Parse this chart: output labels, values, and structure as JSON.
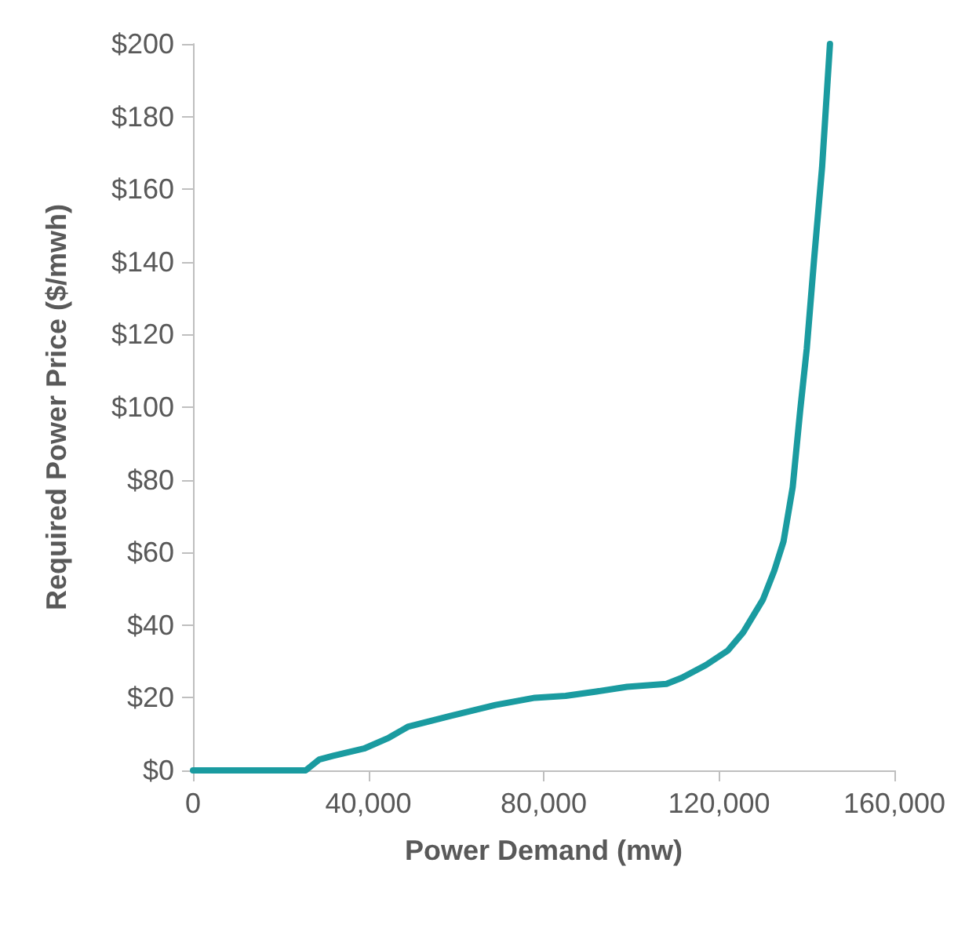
{
  "chart_data": {
    "type": "line",
    "xlabel": "Power Demand (mw)",
    "ylabel": "Required Power Price ($/mwh)",
    "x": [
      0,
      12000,
      23600,
      25700,
      28800,
      32000,
      39000,
      44700,
      49000,
      58700,
      69000,
      78000,
      85000,
      92000,
      99000,
      108000,
      111500,
      117000,
      122000,
      125500,
      130000,
      132600,
      134700,
      136800,
      138500,
      140000,
      141700,
      143500,
      145300
    ],
    "series": [
      {
        "color": "#1a9ba0",
        "values": [
          0,
          0,
          0,
          0,
          3,
          4,
          6,
          9,
          12,
          15,
          18,
          20,
          20.5,
          21.7,
          23,
          23.8,
          25.5,
          29,
          33,
          38,
          47,
          55,
          63,
          78,
          99,
          116,
          141,
          166,
          200
        ]
      }
    ],
    "xlim": [
      0,
      160000
    ],
    "xticks": [
      0,
      {
        "value": 40000,
        "label": "40,000"
      },
      {
        "value": 80000,
        "label": "80,000"
      },
      {
        "value": 120000,
        "label": "120,000"
      },
      {
        "value": 160000,
        "label": "160,000"
      }
    ],
    "ylim": [
      0,
      200
    ],
    "yticks": [
      {
        "value": 0,
        "label": "$0"
      },
      {
        "value": 20,
        "label": "$20"
      },
      {
        "value": 40,
        "label": "$40"
      },
      {
        "value": 60,
        "label": "$60"
      },
      {
        "value": 80,
        "label": "$80"
      },
      {
        "value": 100,
        "label": "$100"
      },
      {
        "value": 120,
        "label": "$120"
      },
      {
        "value": 140,
        "label": "$140"
      },
      {
        "value": 160,
        "label": "$160"
      },
      {
        "value": 180,
        "label": "$180"
      },
      {
        "value": 200,
        "label": "$200"
      }
    ],
    "grid": false,
    "legend": false,
    "marker": "none",
    "line_style": "solid"
  }
}
